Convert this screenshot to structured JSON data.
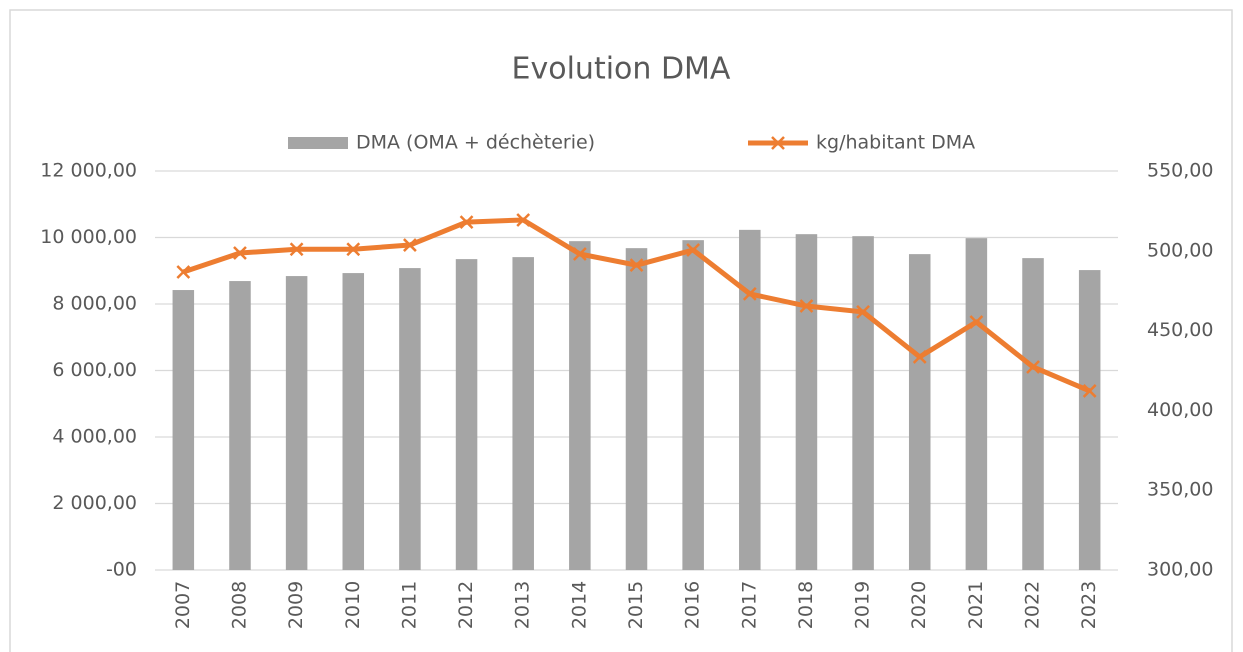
{
  "chart_data": {
    "type": "bar",
    "title": "Evolution DMA",
    "categories": [
      "2007",
      "2008",
      "2009",
      "2010",
      "2011",
      "2012",
      "2013",
      "2014",
      "2015",
      "2016",
      "2017",
      "2018",
      "2019",
      "2020",
      "2021",
      "2022",
      "2023"
    ],
    "series": [
      {
        "name": "DMA (OMA + déchèterie)",
        "type": "bar",
        "color": "#a5a5a5",
        "axis": "y",
        "values": [
          8420,
          8690,
          8840,
          8930,
          9080,
          9350,
          9410,
          9890,
          9680,
          9920,
          10230,
          10100,
          10040,
          9500,
          9980,
          9380,
          9020
        ]
      },
      {
        "name": "kg/habitant DMA",
        "type": "line",
        "color": "#ed7d31",
        "axis": "y2",
        "values": [
          486.7,
          498.6,
          501,
          501,
          503.6,
          518,
          519.3,
          498,
          491,
          500.5,
          473,
          465.4,
          461.7,
          433.5,
          455.4,
          427.2,
          412.2
        ]
      }
    ],
    "ylim": [
      0,
      12000
    ],
    "yticks": [
      {
        "value": 0,
        "label": "-00"
      },
      {
        "value": 2000,
        "label": "2 000,00"
      },
      {
        "value": 4000,
        "label": "4 000,00"
      },
      {
        "value": 6000,
        "label": "6 000,00"
      },
      {
        "value": 8000,
        "label": "8 000,00"
      },
      {
        "value": 10000,
        "label": "10 000,00"
      },
      {
        "value": 12000,
        "label": "12 000,00"
      }
    ],
    "y2lim": [
      300,
      550
    ],
    "y2ticks": [
      {
        "value": 300,
        "label": "300,00"
      },
      {
        "value": 350,
        "label": "350,00"
      },
      {
        "value": 400,
        "label": "400,00"
      },
      {
        "value": 450,
        "label": "450,00"
      },
      {
        "value": 500,
        "label": "500,00"
      },
      {
        "value": 550,
        "label": "550,00"
      }
    ],
    "grid": true,
    "legend": "top"
  }
}
